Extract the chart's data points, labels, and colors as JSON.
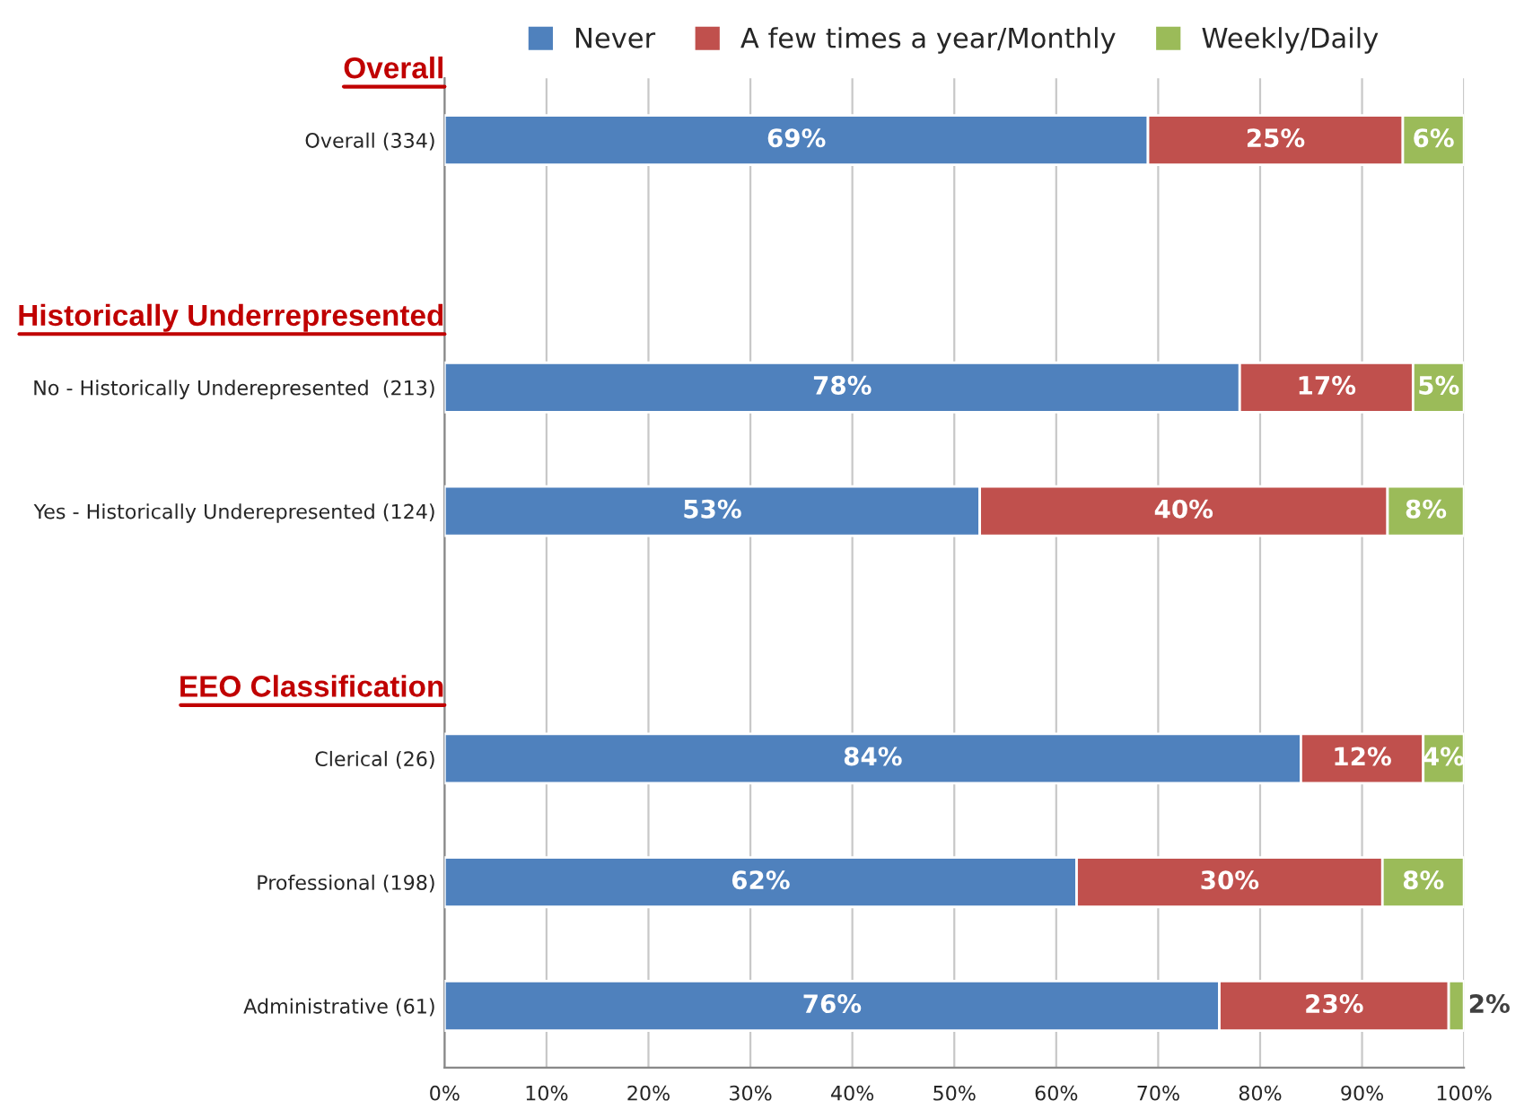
{
  "chart_data": {
    "type": "bar",
    "orientation": "horizontal",
    "stacked": true,
    "categories": [
      "Overall (334)",
      null,
      "No - Historically Underepresented  (213)",
      "Yes - Historically Underepresented (124)",
      null,
      "Clerical (26)",
      "Professional (198)",
      "Administrative (61)"
    ],
    "series": [
      {
        "name": "Never",
        "color": "#4f81bd",
        "values": [
          69,
          null,
          78,
          52.5,
          null,
          84,
          62,
          76
        ],
        "value_labels": [
          "69%",
          null,
          "78%",
          "53%",
          null,
          "84%",
          "62%",
          "76%"
        ]
      },
      {
        "name": "A few times a year/Monthly",
        "color": "#c0504d",
        "values": [
          25,
          null,
          17,
          40,
          null,
          12,
          30,
          22.5
        ],
        "value_labels": [
          "25%",
          null,
          "17%",
          "40%",
          null,
          "12%",
          "30%",
          "23%"
        ]
      },
      {
        "name": "Weekly/Daily",
        "color": "#9bbb59",
        "values": [
          6,
          null,
          5,
          7.5,
          null,
          4,
          8,
          1.5
        ],
        "value_labels": [
          "6%",
          null,
          "5%",
          "8%",
          null,
          "4%",
          "8%",
          "2%"
        ]
      }
    ],
    "annotations": [
      "Overall",
      "Historically Underrepresented",
      "EEO Classification"
    ],
    "xlim": [
      0,
      100
    ],
    "xticks": [
      {
        "value": 0,
        "label": "0%"
      },
      {
        "value": 10,
        "label": "10%"
      },
      {
        "value": 20,
        "label": "20%"
      },
      {
        "value": 30,
        "label": "30%"
      },
      {
        "value": 40,
        "label": "40%"
      },
      {
        "value": 50,
        "label": "50%"
      },
      {
        "value": 60,
        "label": "60%"
      },
      {
        "value": 70,
        "label": "70%"
      },
      {
        "value": 80,
        "label": "80%"
      },
      {
        "value": 90,
        "label": "90%"
      },
      {
        "value": 100,
        "label": "100%"
      }
    ],
    "grid": "x",
    "legend": "top"
  }
}
